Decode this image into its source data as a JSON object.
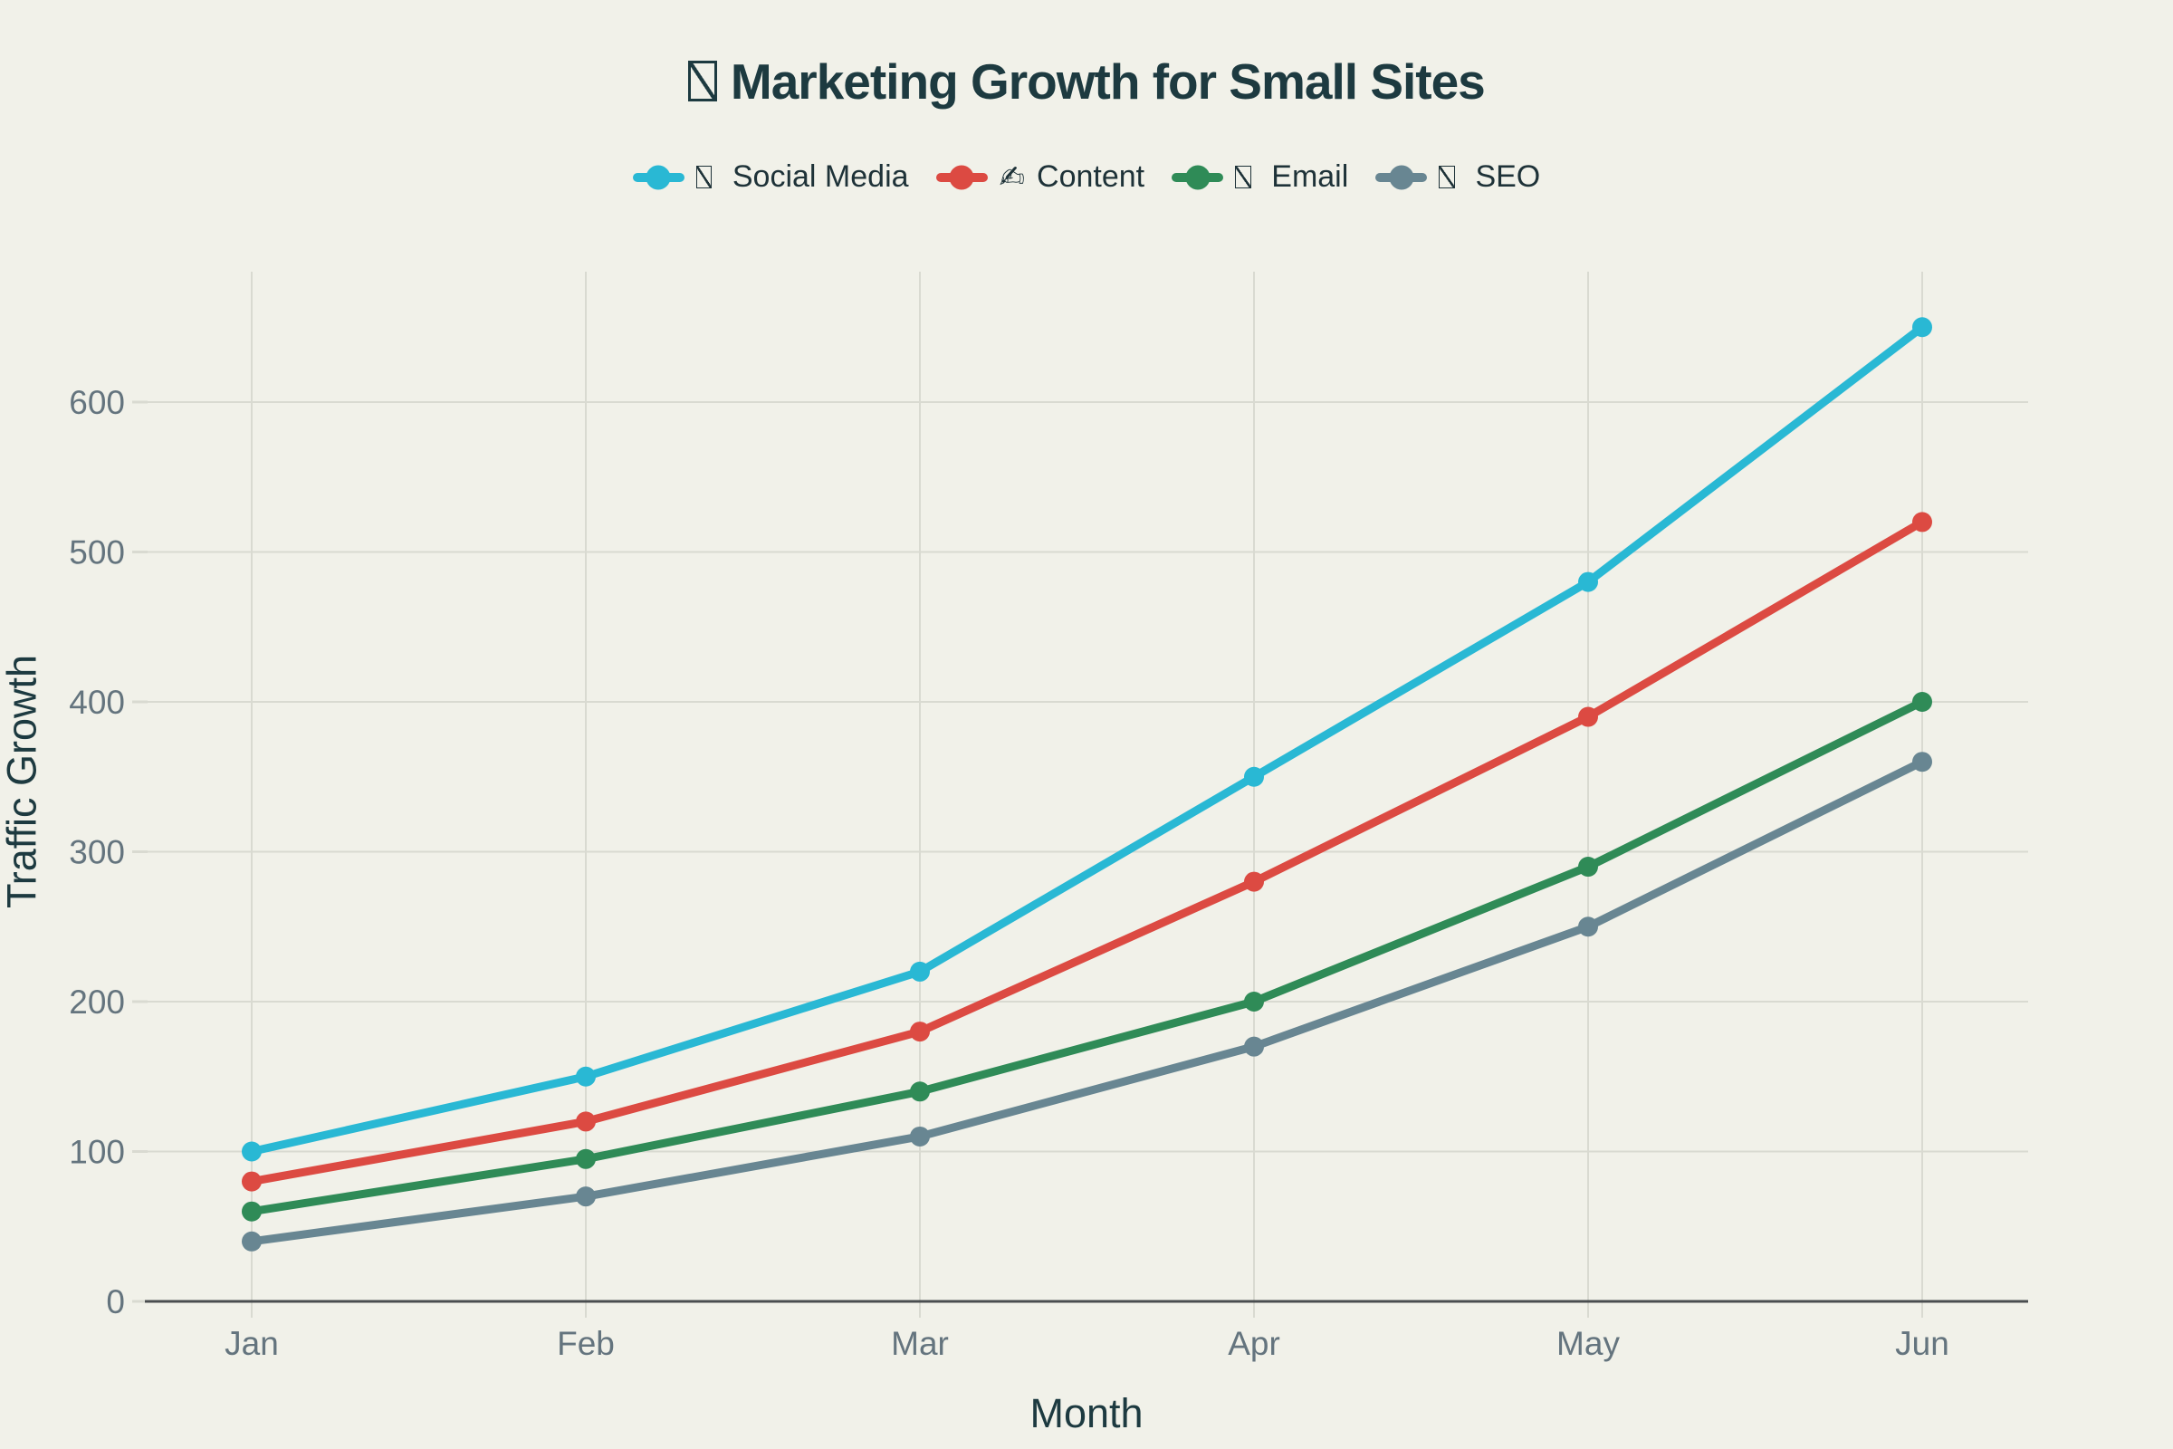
{
  "title": {
    "icon": "missing-glyph",
    "text": "Marketing Growth for Small Sites"
  },
  "legend": [
    {
      "icon": "missing-glyph",
      "label": "Social Media",
      "color": "#29b8d4"
    },
    {
      "icon": "writing-hand",
      "label": "Content",
      "color": "#dc4a42"
    },
    {
      "icon": "missing-glyph",
      "label": "Email",
      "color": "#2f8b57"
    },
    {
      "icon": "missing-glyph",
      "label": "SEO",
      "color": "#688692"
    }
  ],
  "icon_glyphs": {
    "writing-hand": "✍"
  },
  "chart_data": {
    "type": "line",
    "categories": [
      "Jan",
      "Feb",
      "Mar",
      "Apr",
      "May",
      "Jun"
    ],
    "series": [
      {
        "name": "Social Media",
        "color": "#29b8d4",
        "values": [
          100,
          150,
          220,
          350,
          480,
          650
        ]
      },
      {
        "name": "Content",
        "color": "#dc4a42",
        "values": [
          80,
          120,
          180,
          280,
          390,
          520
        ]
      },
      {
        "name": "Email",
        "color": "#2f8b57",
        "values": [
          60,
          95,
          140,
          200,
          290,
          400
        ]
      },
      {
        "name": "SEO",
        "color": "#688692",
        "values": [
          40,
          70,
          110,
          170,
          250,
          360
        ]
      }
    ],
    "title": "Marketing Growth for Small Sites",
    "xlabel": "Month",
    "ylabel": "Traffic Growth",
    "ylim": [
      0,
      686
    ],
    "yticks": [
      0,
      100,
      200,
      300,
      400,
      500,
      600
    ],
    "grid": true,
    "legend_position": "top-center"
  },
  "theme": {
    "background": "#f1f1e9",
    "title_color": "#1d3a40",
    "legend_text_color": "#1e3238",
    "tick_color": "#64747e",
    "grid_color": "#d9dad1",
    "axis_color": "#4a4e50"
  }
}
